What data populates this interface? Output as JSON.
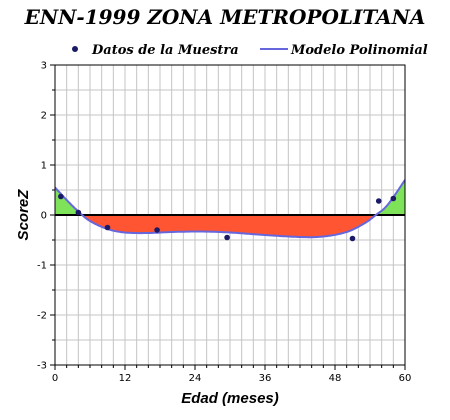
{
  "chart_data": {
    "type": "line",
    "title": "ENN-1999 ZONA METROPOLITANA",
    "xlabel": "Edad (meses)",
    "ylabel": "ScoreZ",
    "xlim": [
      0,
      60
    ],
    "ylim": [
      -3,
      3
    ],
    "xticks": [
      "0",
      "12",
      "24",
      "36",
      "48",
      "60"
    ],
    "yticks": [
      "-3",
      "-2",
      "-1",
      "0",
      "1",
      "2",
      "3"
    ],
    "grid": true,
    "legend": "top",
    "series": [
      {
        "name": "Datos de la Muestra",
        "kind": "scatter",
        "color": "#1a1a66",
        "points": [
          {
            "x": 1,
            "y": 0.37
          },
          {
            "x": 4,
            "y": 0.05
          },
          {
            "x": 9,
            "y": -0.25
          },
          {
            "x": 17.5,
            "y": -0.3
          },
          {
            "x": 29.5,
            "y": -0.45
          },
          {
            "x": 51,
            "y": -0.47
          },
          {
            "x": 55.5,
            "y": 0.28
          },
          {
            "x": 58,
            "y": 0.33
          }
        ]
      },
      {
        "name": "Modelo Polinomial",
        "kind": "line",
        "color": "#6666dd",
        "points": [
          {
            "x": 0,
            "y": 0.55
          },
          {
            "x": 2,
            "y": 0.3
          },
          {
            "x": 4,
            "y": 0.07
          },
          {
            "x": 6,
            "y": -0.12
          },
          {
            "x": 9,
            "y": -0.28
          },
          {
            "x": 12,
            "y": -0.35
          },
          {
            "x": 16,
            "y": -0.36
          },
          {
            "x": 20,
            "y": -0.34
          },
          {
            "x": 25,
            "y": -0.33
          },
          {
            "x": 30,
            "y": -0.35
          },
          {
            "x": 36,
            "y": -0.4
          },
          {
            "x": 42,
            "y": -0.44
          },
          {
            "x": 46,
            "y": -0.43
          },
          {
            "x": 50,
            "y": -0.34
          },
          {
            "x": 53,
            "y": -0.17
          },
          {
            "x": 55,
            "y": 0.0
          },
          {
            "x": 57,
            "y": 0.2
          },
          {
            "x": 60,
            "y": 0.7
          }
        ]
      }
    ],
    "fill_colors": {
      "positive": "#7fe35a",
      "negative": "#ff5533"
    },
    "zero_line_color": "#000000"
  }
}
